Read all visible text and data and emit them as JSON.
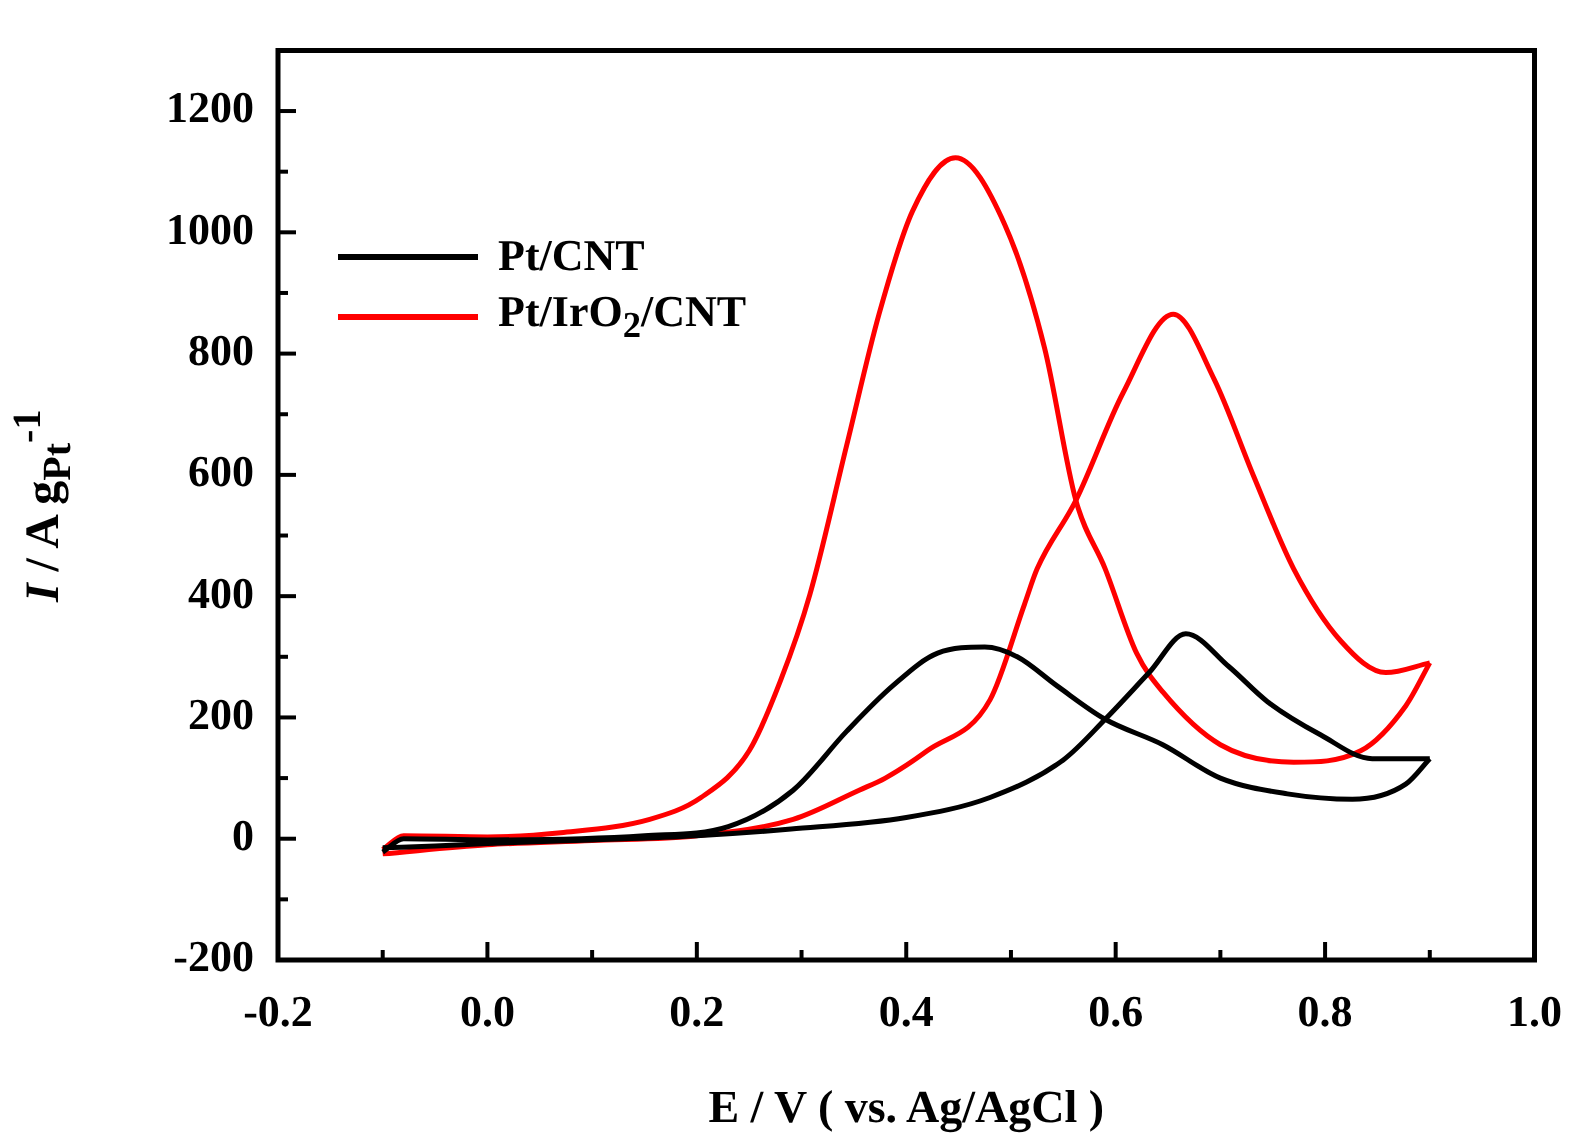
{
  "chart_data": {
    "type": "line",
    "xlabel": "E / V ( vs. Ag/AgCl )",
    "ylabel": "I / A g$_{Pt}$$^{-1}$",
    "xlim": [
      -0.2,
      1.0
    ],
    "ylim": [
      -200,
      1300
    ],
    "xticks": [
      -0.2,
      {
        "value": -0.1,
        "label": null
      },
      {
        "value": 0,
        "label": "0.0"
      },
      {
        "value": 0.1,
        "label": null
      },
      0.2,
      {
        "value": 0.3,
        "label": null
      },
      0.4,
      {
        "value": 0.5,
        "label": null
      },
      0.6,
      {
        "value": 0.7,
        "label": null
      },
      0.8,
      {
        "value": 0.9,
        "label": null
      },
      {
        "value": 1,
        "label": "1.0"
      }
    ],
    "yticks": [
      -200,
      {
        "value": -100,
        "label": null
      },
      0,
      {
        "value": 100,
        "label": null
      },
      200,
      {
        "value": 300,
        "label": null
      },
      400,
      {
        "value": 500,
        "label": null
      },
      600,
      {
        "value": 700,
        "label": null
      },
      800,
      {
        "value": 900,
        "label": null
      },
      1000,
      {
        "value": 1100,
        "label": null
      },
      1200
    ],
    "grid": false,
    "legend": "top left",
    "marker": "none",
    "line_style": "solid",
    "series": [
      {
        "name": "Pt/CNT",
        "color": "#000000",
        "x": [
          -0.1,
          -0.05,
          0.0,
          0.1,
          0.2,
          0.29,
          0.4,
          0.48,
          0.55,
          0.59,
          0.632,
          0.667,
          0.708,
          0.745,
          0.796,
          0.845,
          0.9
        ],
        "values": [
          -15,
          -12,
          -8,
          -2,
          5,
          16,
          35,
          68,
          130,
          197,
          274,
          338,
          284,
          226,
          171,
          132,
          132
        ]
      },
      {
        "color": "#000000",
        "x": [
          0.9,
          0.877,
          0.826,
          0.764,
          0.7,
          0.645,
          0.59,
          0.544,
          0.506,
          0.475,
          0.43,
          0.387,
          0.343,
          0.292,
          0.23,
          0.15,
          0.0,
          -0.08,
          -0.1
        ],
        "values": [
          132,
          90,
          65,
          74,
          100,
          155,
          197,
          252,
          300,
          316,
          306,
          252,
          177,
          80,
          20,
          5,
          -2,
          0,
          -22
        ]
      },
      {
        "name": "Pt/IrO$_{2}$/CNT",
        "color": "#ff0000",
        "x": [
          -0.1,
          0.0,
          0.1,
          0.2,
          0.292,
          0.355,
          0.38,
          0.42,
          0.48,
          0.513,
          0.525,
          0.562,
          0.607,
          0.655,
          0.694,
          0.732,
          0.77,
          0.815,
          0.858,
          0.9
        ],
        "values": [
          -25,
          -10,
          -3,
          5,
          32,
          80,
          100,
          145,
          229,
          387,
          445,
          558,
          735,
          865,
          758,
          597,
          445,
          326,
          274,
          290
        ]
      },
      {
        "color": "#ff0000",
        "x": [
          0.9,
          0.877,
          0.834,
          0.77,
          0.7,
          0.645,
          0.62,
          0.59,
          0.562,
          0.532,
          0.494,
          0.447,
          0.406,
          0.374,
          0.343,
          0.308,
          0.28,
          0.25,
          0.204,
          0.155,
          0.07,
          0.0,
          -0.08,
          -0.1
        ],
        "values": [
          290,
          219,
          145,
          126,
          155,
          242,
          306,
          445,
          558,
          810,
          1013,
          1123,
          1035,
          865,
          648,
          403,
          261,
          145,
          68,
          32,
          10,
          3,
          5,
          -18
        ]
      }
    ]
  }
}
